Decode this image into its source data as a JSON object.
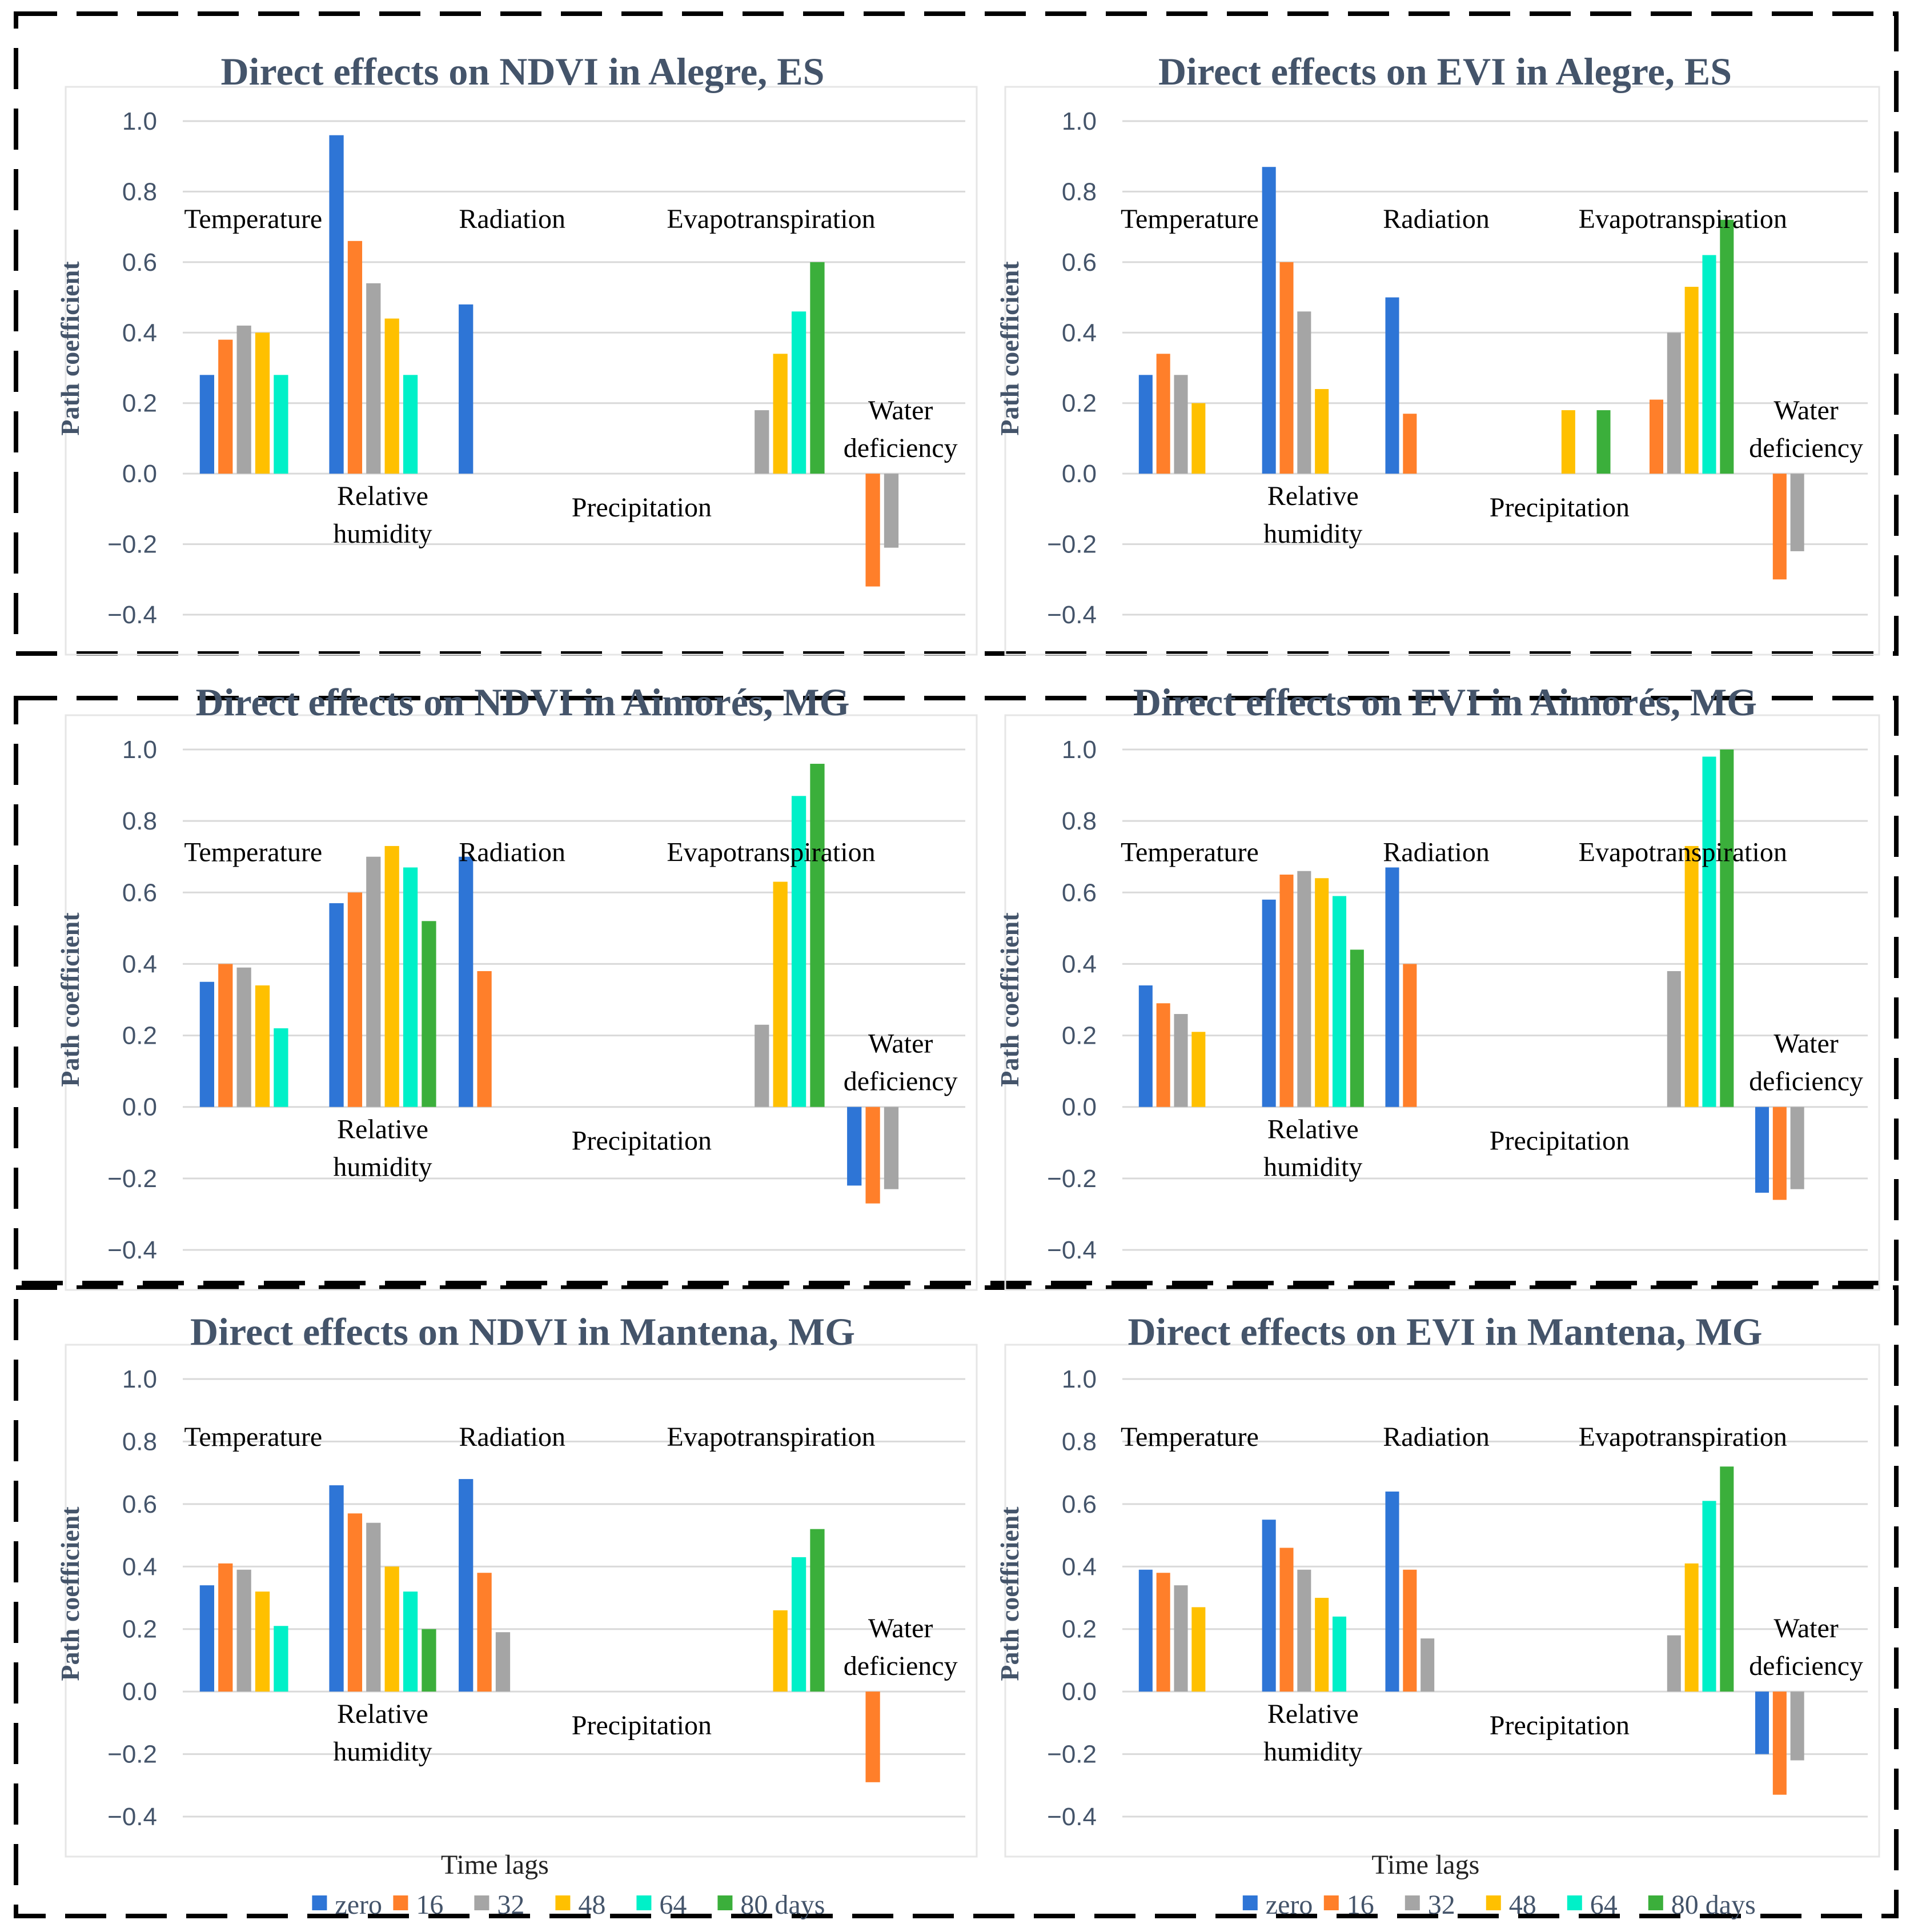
{
  "colors": {
    "title": "#44546A",
    "axis_text": "#44546A",
    "grid": "#D9D9D9",
    "frame": "#000000",
    "label": "#000000",
    "series": [
      "#2E75D6",
      "#FF7F2A",
      "#A5A5A5",
      "#FFC000",
      "#00F0C8",
      "#3BAF3B"
    ]
  },
  "chart_data": [
    {
      "type": "bar",
      "title": "Direct effects on NDVI in Alegre, ES",
      "ylabel": "Path coefficient",
      "xlabel": "",
      "ylim": [
        -0.4,
        1.0
      ],
      "yticks": [
        "1.0",
        "0.8",
        "0.6",
        "0.4",
        "0.2",
        "0.0",
        "−0.2",
        "−0.4"
      ],
      "categories": [
        "Temperature",
        "Relative humidity",
        "Radiation",
        "Precipitation",
        "Evapotranspiration",
        "Water deficiency"
      ],
      "series": [
        {
          "name": "zero",
          "values": [
            0.28,
            0.96,
            0.48,
            null,
            null,
            null
          ]
        },
        {
          "name": "16",
          "values": [
            0.38,
            0.66,
            null,
            null,
            null,
            -0.32
          ]
        },
        {
          "name": "32",
          "values": [
            0.42,
            0.54,
            null,
            null,
            0.18,
            -0.21
          ]
        },
        {
          "name": "48",
          "values": [
            0.4,
            0.44,
            null,
            null,
            0.34,
            null
          ]
        },
        {
          "name": "64",
          "values": [
            0.28,
            0.28,
            null,
            null,
            0.46,
            null
          ]
        },
        {
          "name": "80 days",
          "values": [
            null,
            null,
            null,
            null,
            0.6,
            null
          ]
        }
      ]
    },
    {
      "type": "bar",
      "title": "Direct effects on EVI in Alegre, ES",
      "ylabel": "Path coefficient",
      "xlabel": "",
      "ylim": [
        -0.4,
        1.0
      ],
      "yticks": [
        "1.0",
        "0.8",
        "0.6",
        "0.4",
        "0.2",
        "0.0",
        "−0.2",
        "−0.4"
      ],
      "categories": [
        "Temperature",
        "Relative humidity",
        "Radiation",
        "Precipitation",
        "Evapotranspiration",
        "Water deficiency"
      ],
      "series": [
        {
          "name": "zero",
          "values": [
            0.28,
            0.87,
            0.5,
            null,
            null,
            null
          ]
        },
        {
          "name": "16",
          "values": [
            0.34,
            0.6,
            0.17,
            null,
            0.21,
            -0.3
          ]
        },
        {
          "name": "32",
          "values": [
            0.28,
            0.46,
            null,
            null,
            0.4,
            -0.22
          ]
        },
        {
          "name": "48",
          "values": [
            0.2,
            0.24,
            null,
            0.18,
            0.53,
            null
          ]
        },
        {
          "name": "64",
          "values": [
            null,
            null,
            null,
            null,
            0.62,
            null
          ]
        },
        {
          "name": "80 days",
          "values": [
            null,
            null,
            null,
            0.18,
            0.72,
            null
          ]
        }
      ]
    },
    {
      "type": "bar",
      "title": "Direct effects on NDVI in Aimorés, MG",
      "ylabel": "Path coefficient",
      "xlabel": "",
      "ylim": [
        -0.4,
        1.0
      ],
      "yticks": [
        "1.0",
        "0.8",
        "0.6",
        "0.4",
        "0.2",
        "0.0",
        "−0.2",
        "−0.4"
      ],
      "categories": [
        "Temperature",
        "Relative humidity",
        "Radiation",
        "Precipitation",
        "Evapotranspiration",
        "Water deficiency"
      ],
      "series": [
        {
          "name": "zero",
          "values": [
            0.35,
            0.57,
            0.7,
            null,
            null,
            -0.22
          ]
        },
        {
          "name": "16",
          "values": [
            0.4,
            0.6,
            0.38,
            null,
            null,
            -0.27
          ]
        },
        {
          "name": "32",
          "values": [
            0.39,
            0.7,
            null,
            null,
            0.23,
            -0.23
          ]
        },
        {
          "name": "48",
          "values": [
            0.34,
            0.73,
            null,
            null,
            0.63,
            null
          ]
        },
        {
          "name": "64",
          "values": [
            0.22,
            0.67,
            null,
            null,
            0.87,
            null
          ]
        },
        {
          "name": "80 days",
          "values": [
            null,
            0.52,
            null,
            null,
            0.96,
            null
          ]
        }
      ]
    },
    {
      "type": "bar",
      "title": "Direct effects on EVI in Aimorés, MG",
      "ylabel": "Path coefficient",
      "xlabel": "",
      "ylim": [
        -0.4,
        1.0
      ],
      "yticks": [
        "1.0",
        "0.8",
        "0.6",
        "0.4",
        "0.2",
        "0.0",
        "−0.2",
        "−0.4"
      ],
      "categories": [
        "Temperature",
        "Relative humidity",
        "Radiation",
        "Precipitation",
        "Evapotranspiration",
        "Water deficiency"
      ],
      "series": [
        {
          "name": "zero",
          "values": [
            0.34,
            0.58,
            0.67,
            null,
            null,
            -0.24
          ]
        },
        {
          "name": "16",
          "values": [
            0.29,
            0.65,
            0.4,
            null,
            null,
            -0.26
          ]
        },
        {
          "name": "32",
          "values": [
            0.26,
            0.66,
            null,
            null,
            0.38,
            -0.23
          ]
        },
        {
          "name": "48",
          "values": [
            0.21,
            0.64,
            null,
            null,
            0.73,
            null
          ]
        },
        {
          "name": "64",
          "values": [
            null,
            0.59,
            null,
            null,
            0.98,
            null
          ]
        },
        {
          "name": "80 days",
          "values": [
            null,
            0.44,
            null,
            null,
            1.0,
            null
          ]
        }
      ]
    },
    {
      "type": "bar",
      "title": "Direct effects on NDVI in Mantena, MG",
      "ylabel": "Path coefficient",
      "xlabel": "Time lags",
      "ylim": [
        -0.4,
        1.0
      ],
      "yticks": [
        "1.0",
        "0.8",
        "0.6",
        "0.4",
        "0.2",
        "0.0",
        "−0.2",
        "−0.4"
      ],
      "categories": [
        "Temperature",
        "Relative humidity",
        "Radiation",
        "Precipitation",
        "Evapotranspiration",
        "Water deficiency"
      ],
      "series": [
        {
          "name": "zero",
          "values": [
            0.34,
            0.66,
            0.68,
            null,
            null,
            null
          ]
        },
        {
          "name": "16",
          "values": [
            0.41,
            0.57,
            0.38,
            null,
            null,
            -0.29
          ]
        },
        {
          "name": "32",
          "values": [
            0.39,
            0.54,
            0.19,
            null,
            null,
            null
          ]
        },
        {
          "name": "48",
          "values": [
            0.32,
            0.4,
            null,
            null,
            0.26,
            null
          ]
        },
        {
          "name": "64",
          "values": [
            0.21,
            0.32,
            null,
            null,
            0.43,
            null
          ]
        },
        {
          "name": "80 days",
          "values": [
            null,
            0.2,
            null,
            null,
            0.52,
            null
          ]
        }
      ]
    },
    {
      "type": "bar",
      "title": "Direct effects on EVI in Mantena, MG",
      "ylabel": "Path coefficient",
      "xlabel": "Time lags",
      "ylim": [
        -0.4,
        1.0
      ],
      "yticks": [
        "1.0",
        "0.8",
        "0.6",
        "0.4",
        "0.2",
        "0.0",
        "−0.2",
        "−0.4"
      ],
      "categories": [
        "Temperature",
        "Relative humidity",
        "Radiation",
        "Precipitation",
        "Evapotranspiration",
        "Water deficiency"
      ],
      "series": [
        {
          "name": "zero",
          "values": [
            0.39,
            0.55,
            0.64,
            null,
            null,
            -0.2
          ]
        },
        {
          "name": "16",
          "values": [
            0.38,
            0.46,
            0.39,
            null,
            null,
            -0.33
          ]
        },
        {
          "name": "32",
          "values": [
            0.34,
            0.39,
            0.17,
            null,
            0.18,
            -0.22
          ]
        },
        {
          "name": "48",
          "values": [
            0.27,
            0.3,
            null,
            null,
            0.41,
            null
          ]
        },
        {
          "name": "64",
          "values": [
            null,
            0.24,
            null,
            null,
            0.61,
            null
          ]
        },
        {
          "name": "80 days",
          "values": [
            null,
            null,
            null,
            null,
            0.72,
            null
          ]
        }
      ]
    }
  ],
  "legend": {
    "title": "Time lags",
    "items": [
      "zero",
      "16",
      "32",
      "48",
      "64",
      "80 days"
    ]
  },
  "group_label_lines": [
    [
      "Temperature"
    ],
    [
      "Relative",
      "humidity"
    ],
    [
      "Radiation"
    ],
    [
      "Precipitation"
    ],
    [
      "Evapotranspiration"
    ],
    [
      "Water",
      "deficiency"
    ]
  ]
}
